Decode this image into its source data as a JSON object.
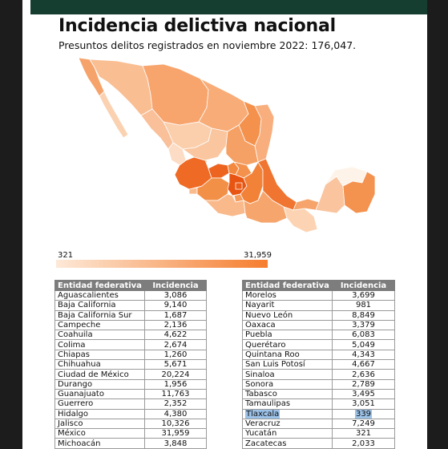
{
  "header": {
    "title": "Incidencia delictiva nacional",
    "subtitle": "Presuntos delitos registrados en noviembre 2022: 176,047."
  },
  "legend": {
    "min": "321",
    "max": "31,959",
    "color_min": "#fde9d8",
    "color_max": "#f57d2e"
  },
  "table_headers": {
    "entity": "Entidad federativa",
    "incidence": "Incidencia"
  },
  "table_left": [
    {
      "name": "Aguascalientes",
      "value": "3,086"
    },
    {
      "name": "Baja California",
      "value": "9,140"
    },
    {
      "name": "Baja California Sur",
      "value": "1,687"
    },
    {
      "name": "Campeche",
      "value": "2,136"
    },
    {
      "name": "Coahuila",
      "value": "4,622"
    },
    {
      "name": "Colima",
      "value": "2,674"
    },
    {
      "name": "Chiapas",
      "value": "1,260"
    },
    {
      "name": "Chihuahua",
      "value": "5,671"
    },
    {
      "name": "Ciudad de México",
      "value": "20,224"
    },
    {
      "name": "Durango",
      "value": "1,956"
    },
    {
      "name": "Guanajuato",
      "value": "11,763"
    },
    {
      "name": "Guerrero",
      "value": "2,352"
    },
    {
      "name": "Hidalgo",
      "value": "4,380"
    },
    {
      "name": "Jalisco",
      "value": "10,326"
    },
    {
      "name": "México",
      "value": "31,959"
    },
    {
      "name": "Michoacán",
      "value": "3,848"
    }
  ],
  "table_right": [
    {
      "name": "Morelos",
      "value": "3,699"
    },
    {
      "name": "Nayarit",
      "value": "981"
    },
    {
      "name": "Nuevo León",
      "value": "8,849"
    },
    {
      "name": "Oaxaca",
      "value": "3,379"
    },
    {
      "name": "Puebla",
      "value": "6,083"
    },
    {
      "name": "Querétaro",
      "value": "5,049"
    },
    {
      "name": "Quintana Roo",
      "value": "4,343"
    },
    {
      "name": "San Luis Potosí",
      "value": "4,667"
    },
    {
      "name": "Sinaloa",
      "value": "2,636"
    },
    {
      "name": "Sonora",
      "value": "2,789"
    },
    {
      "name": "Tabasco",
      "value": "3,495"
    },
    {
      "name": "Tamaulipas",
      "value": "3,051"
    },
    {
      "name": "Tlaxcala",
      "value": "339",
      "selected": true
    },
    {
      "name": "Veracruz",
      "value": "7,249"
    },
    {
      "name": "Yucatán",
      "value": "321"
    },
    {
      "name": "Zacatecas",
      "value": "2,033"
    }
  ],
  "colors": {
    "top_bar": "#163e30",
    "table_header": "#7d7d7d",
    "selection": "#9cc2e8"
  }
}
